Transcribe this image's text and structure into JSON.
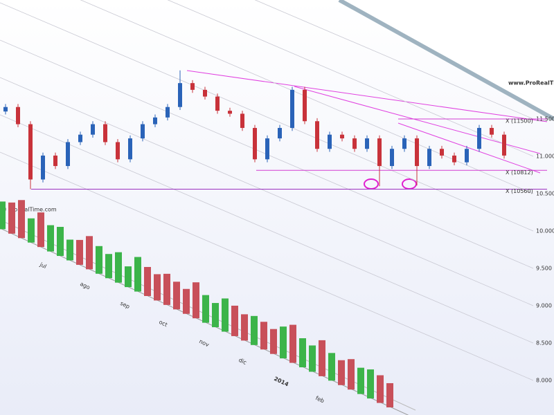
{
  "chart_data": {
    "type": "candlestick",
    "watermark": "www.ProRealTime.com",
    "source_note": "© ProRealTime.com",
    "up_color": "#2a63b8",
    "down_color": "#c8323a",
    "open": [
      11600,
      11660,
      11430,
      10690,
      11010,
      10870,
      11190,
      11290,
      11430,
      11190,
      10960,
      11240,
      11430,
      11520,
      11660,
      11980,
      11890,
      11800,
      11610,
      11570,
      11380,
      10960,
      11240,
      11380,
      11890,
      11470,
      11100,
      11290,
      11240,
      11100,
      11240,
      10870,
      11100,
      11240,
      10870,
      11100,
      11010,
      10920,
      11100,
      11380,
      11290
    ],
    "high": [
      11700,
      11700,
      11470,
      11050,
      11050,
      11230,
      11330,
      11470,
      11470,
      11230,
      11280,
      11470,
      11560,
      11700,
      12150,
      12020,
      11930,
      11840,
      11650,
      11610,
      11420,
      11280,
      11420,
      11930,
      11930,
      11510,
      11330,
      11330,
      11280,
      11280,
      11280,
      11140,
      11280,
      11280,
      11140,
      11140,
      11050,
      11140,
      11420,
      11420,
      11330
    ],
    "low": [
      11560,
      11390,
      10560,
      10650,
      10830,
      10830,
      11150,
      11250,
      11150,
      10920,
      10920,
      11200,
      11390,
      11480,
      11620,
      11850,
      11760,
      11570,
      11530,
      11340,
      10920,
      10920,
      11200,
      11340,
      11430,
      11060,
      11060,
      11200,
      11060,
      11060,
      10600,
      10830,
      11060,
      10610,
      10830,
      10970,
      10880,
      10880,
      11060,
      11250,
      10970
    ],
    "close": [
      11660,
      11430,
      10690,
      11010,
      10870,
      11190,
      11290,
      11430,
      11190,
      10960,
      11240,
      11430,
      11520,
      11660,
      11980,
      11890,
      11800,
      11610,
      11570,
      11380,
      10960,
      11240,
      11380,
      11890,
      11470,
      11100,
      11290,
      11240,
      11100,
      11240,
      10870,
      11100,
      11240,
      10870,
      11100,
      11010,
      10920,
      11100,
      11380,
      11290,
      11010
    ],
    "volume": [
      40,
      45,
      55,
      35,
      50,
      38,
      42,
      30,
      36,
      48,
      40,
      35,
      44,
      30,
      50,
      42,
      38,
      45,
      40,
      36,
      52,
      40,
      35,
      48,
      44,
      38,
      42,
      40,
      36,
      46,
      55,
      42,
      38,
      52,
      40,
      36,
      44,
      38,
      42,
      40,
      35
    ],
    "volume_up_color": "#3cb44a",
    "volume_down_color": "#c8505a",
    "levels": [
      {
        "label": "X (11500)",
        "value": 11500,
        "color": "#d23cd2"
      },
      {
        "label": "X (10812)",
        "value": 10812,
        "color": "#d23cd2"
      },
      {
        "label": "X (10560)",
        "value": 10560,
        "color": "#9b30c0"
      }
    ],
    "months": [
      "jul",
      "ago",
      "sep",
      "oct",
      "nov",
      "dic",
      "2014",
      "feb"
    ],
    "ylim": [
      8000,
      11500
    ],
    "yticks": [
      {
        "value": 11500,
        "label": "11.500"
      },
      {
        "value": 11000,
        "label": "11.000"
      },
      {
        "value": 10500,
        "label": "10.500"
      },
      {
        "value": 10000,
        "label": "10.000"
      },
      {
        "value": 9500,
        "label": "9.500"
      },
      {
        "value": 9000,
        "label": "9.000"
      },
      {
        "value": 8500,
        "label": "8.500"
      },
      {
        "value": 8000,
        "label": "8.000"
      }
    ],
    "grid": true
  }
}
